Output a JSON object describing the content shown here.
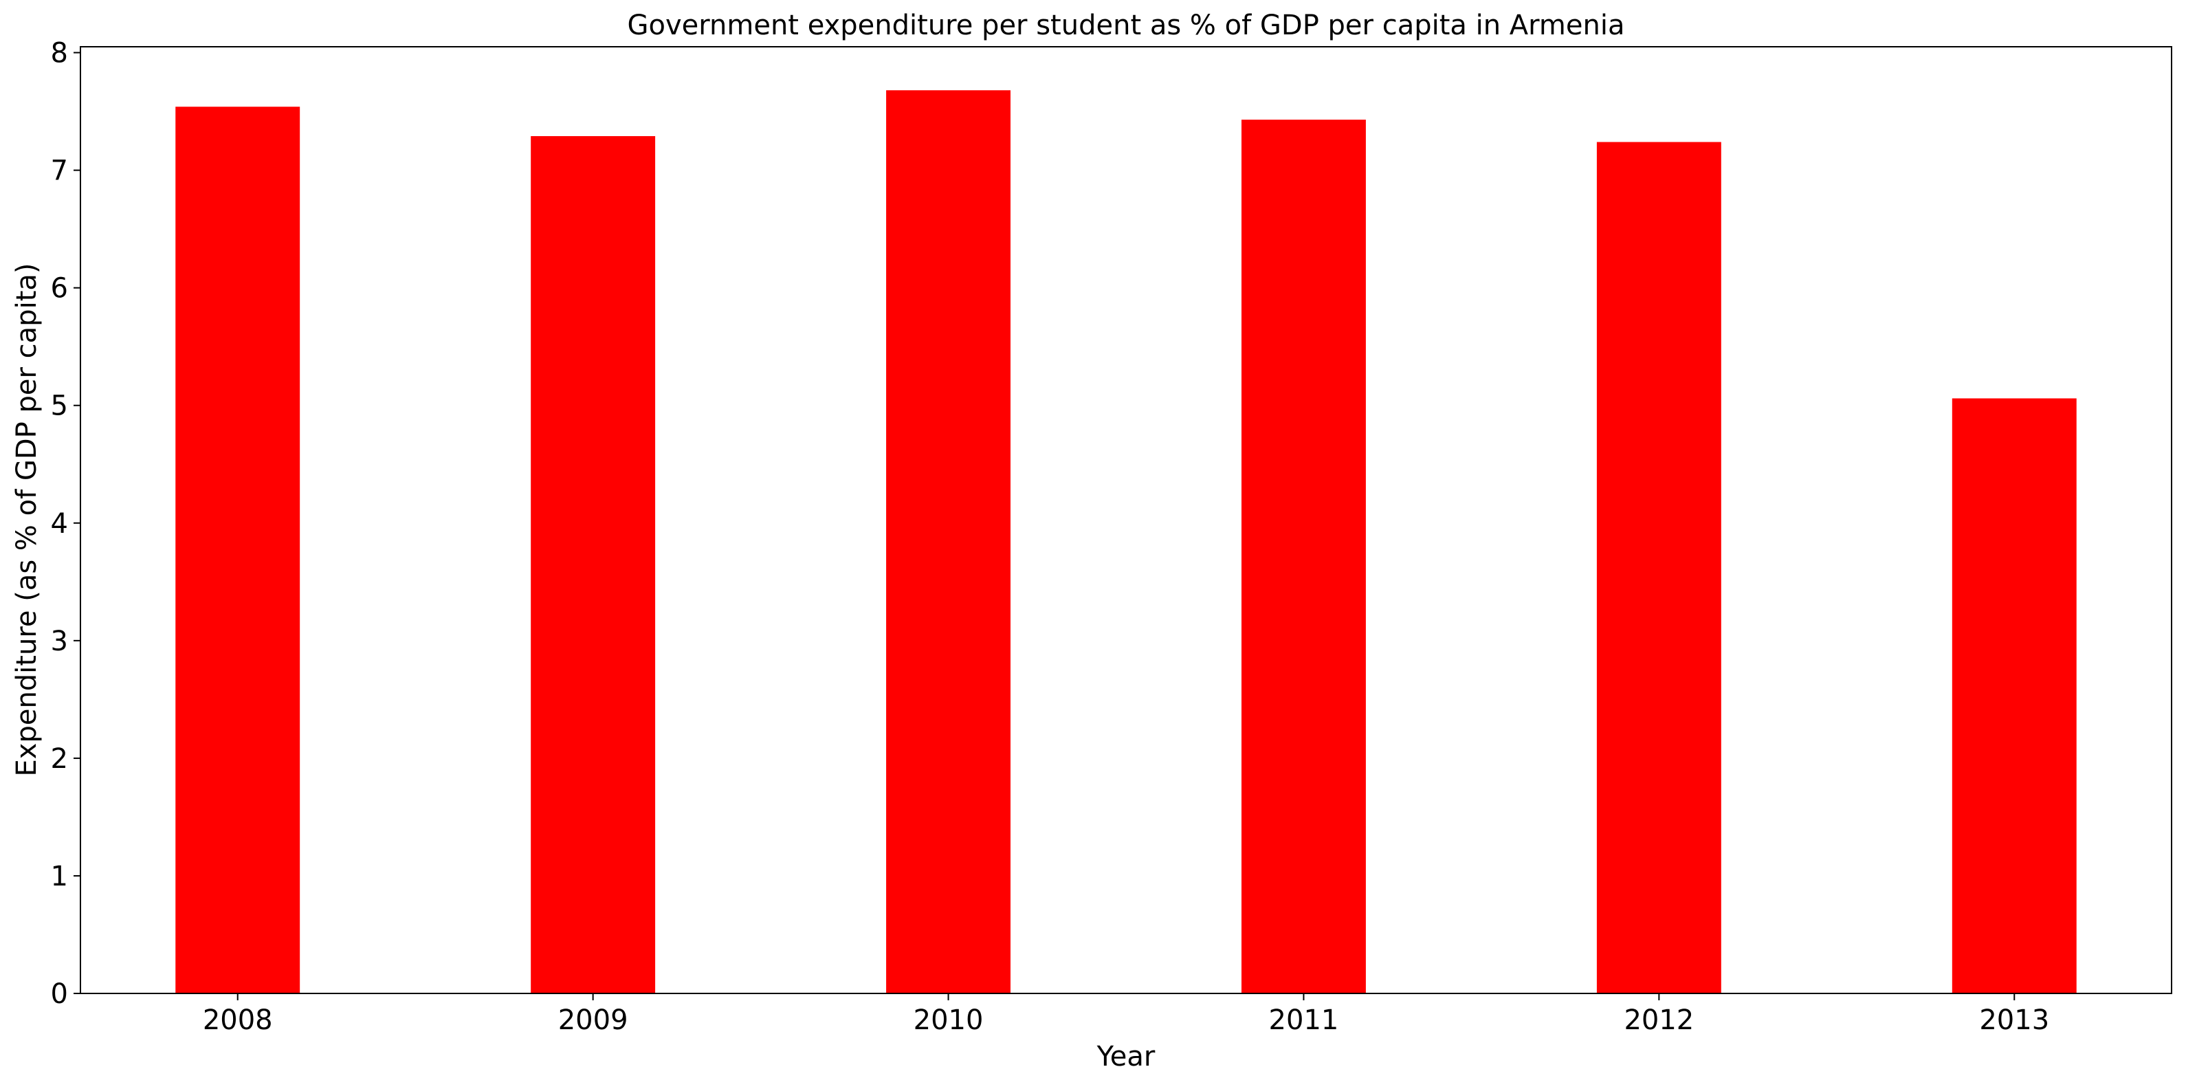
{
  "chart_data": {
    "type": "bar",
    "title": "Government expenditure per student as % of GDP per capita in Armenia",
    "xlabel": "Year",
    "ylabel": "Expenditure (as % of GDP per capita)",
    "categories": [
      "2008",
      "2009",
      "2010",
      "2011",
      "2012",
      "2013"
    ],
    "values": [
      7.54,
      7.29,
      7.68,
      7.43,
      7.24,
      5.06
    ],
    "ylim": [
      0,
      8.05
    ],
    "yticks": [
      0,
      1,
      2,
      3,
      4,
      5,
      6,
      7,
      8
    ],
    "bar_color": "#ff0000",
    "grid": false,
    "legend": "none"
  }
}
